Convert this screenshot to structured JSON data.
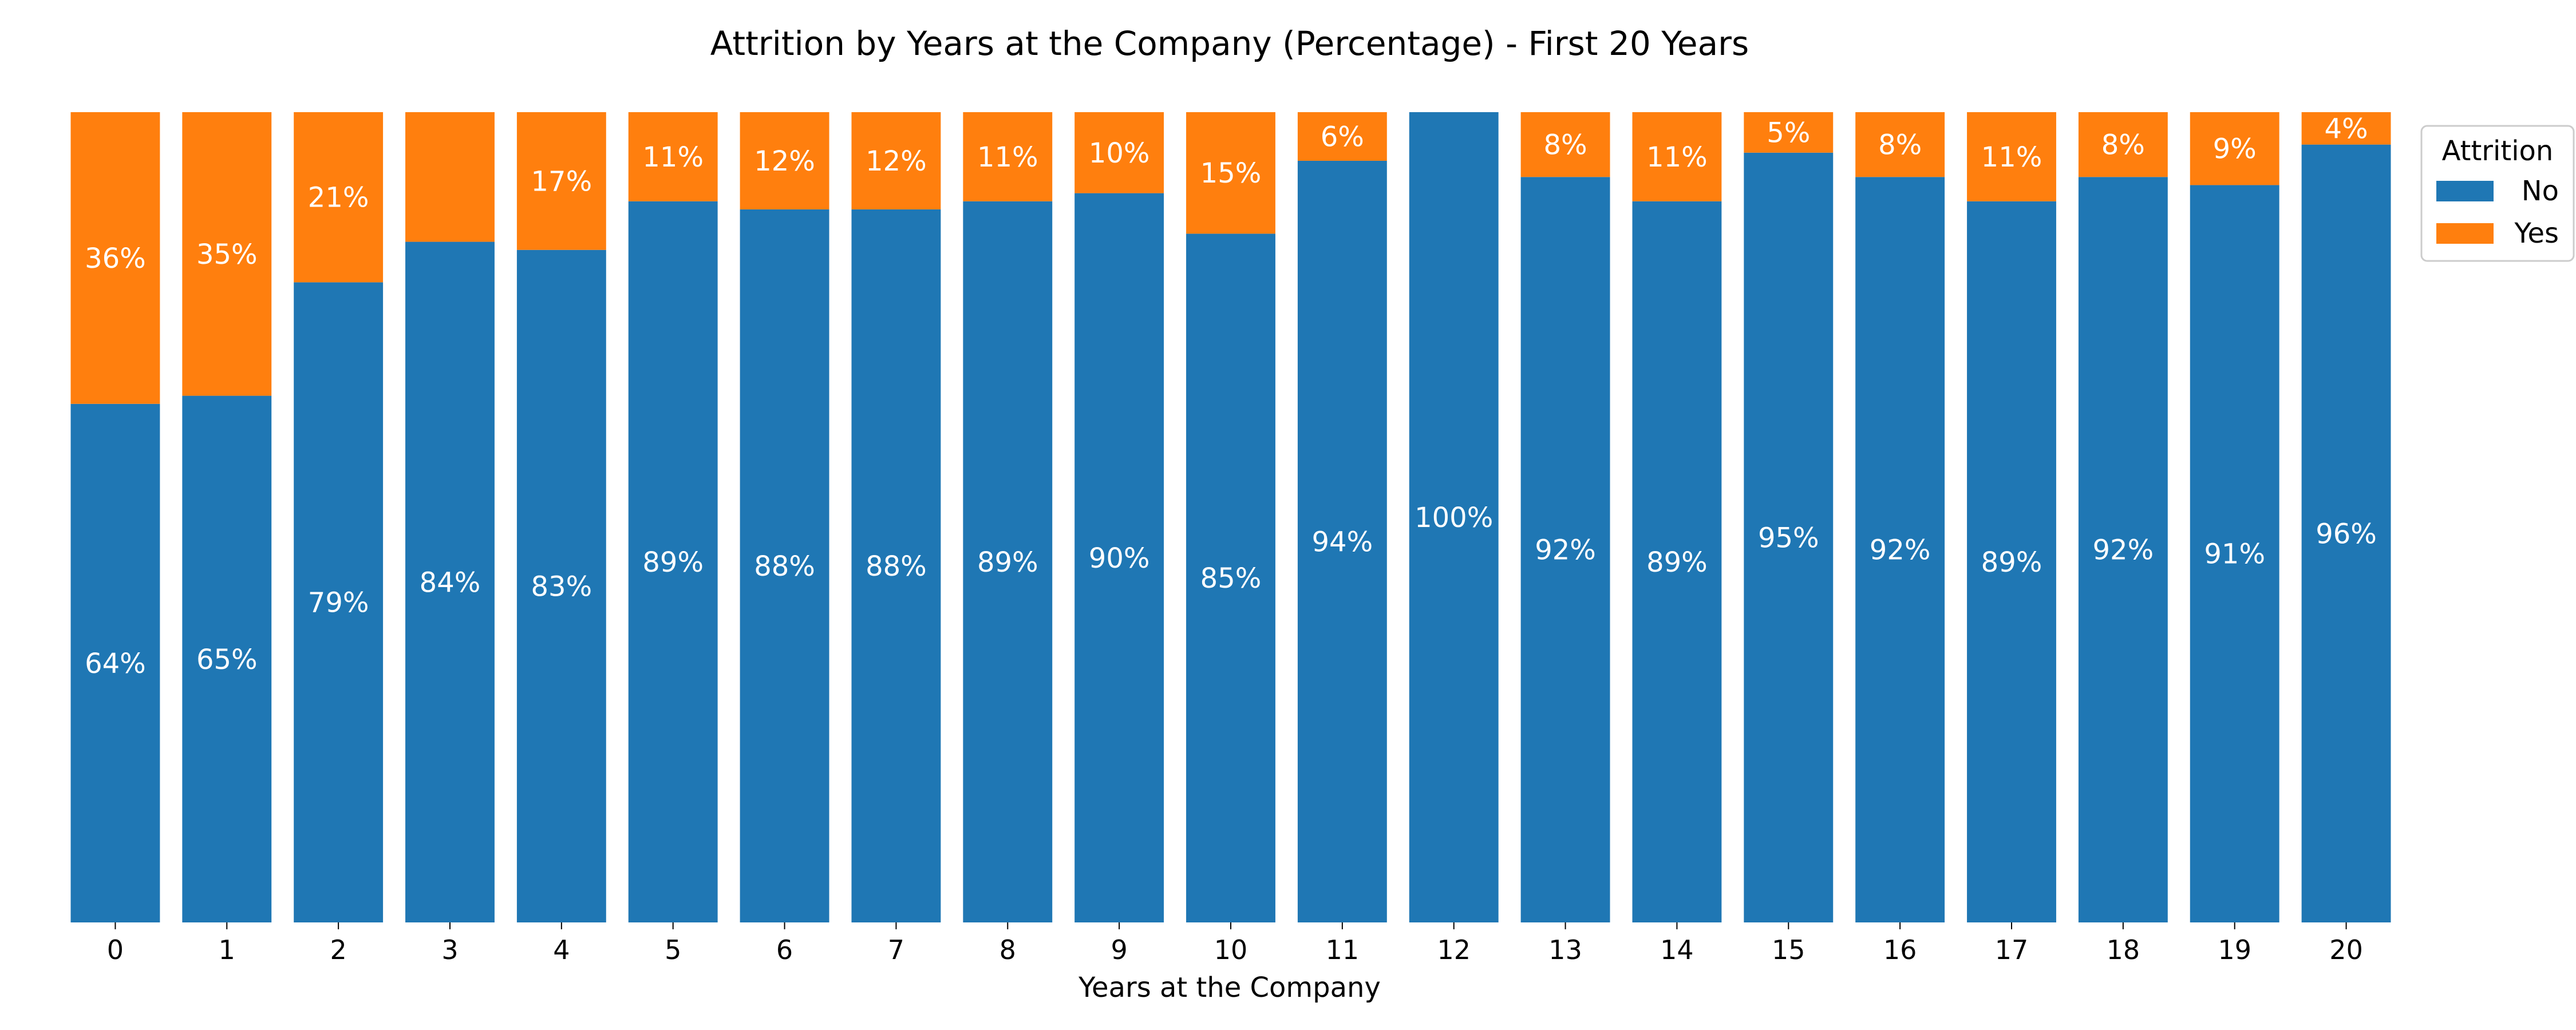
{
  "chart_data": {
    "type": "bar",
    "stacked": true,
    "title": "Attrition by Years at the Company (Percentage) - First 20 Years",
    "xlabel": "Years at the Company",
    "ylabel": "",
    "ylim": [
      0,
      100
    ],
    "grid": false,
    "categories": [
      "0",
      "1",
      "2",
      "3",
      "4",
      "5",
      "6",
      "7",
      "8",
      "9",
      "10",
      "11",
      "12",
      "13",
      "14",
      "15",
      "16",
      "17",
      "18",
      "19",
      "20"
    ],
    "series": [
      {
        "name": "No",
        "color": "#1f77b4",
        "values": [
          64,
          65,
          79,
          84,
          83,
          89,
          88,
          88,
          89,
          90,
          85,
          94,
          100,
          92,
          89,
          95,
          92,
          89,
          92,
          91,
          96
        ],
        "labels": [
          "64%",
          "65%",
          "79%",
          "84%",
          "83%",
          "89%",
          "88%",
          "88%",
          "89%",
          "90%",
          "85%",
          "94%",
          "100%",
          "92%",
          "89%",
          "95%",
          "92%",
          "89%",
          "92%",
          "91%",
          "96%"
        ]
      },
      {
        "name": "Yes",
        "color": "#ff7f0e",
        "values": [
          36,
          35,
          21,
          16,
          17,
          11,
          12,
          12,
          11,
          10,
          15,
          6,
          0,
          8,
          11,
          5,
          8,
          11,
          8,
          9,
          4
        ],
        "labels": [
          "36%",
          "35%",
          "21%",
          "",
          "17%",
          "11%",
          "12%",
          "12%",
          "11%",
          "10%",
          "15%",
          "6%",
          "",
          "8%",
          "11%",
          "5%",
          "8%",
          "11%",
          "8%",
          "9%",
          "4%"
        ]
      }
    ],
    "legend": {
      "title": "Attrition",
      "placement": "right"
    }
  }
}
